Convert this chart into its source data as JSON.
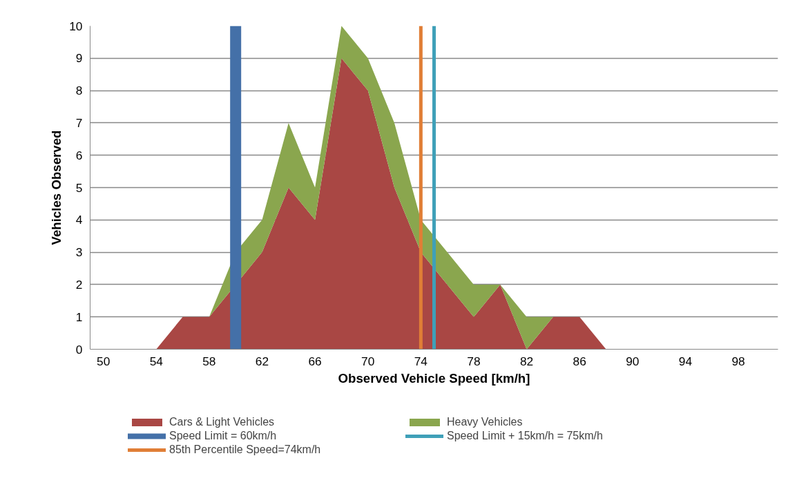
{
  "chart_data": {
    "type": "area",
    "stacked": true,
    "xlabel": "Observed Vehicle Speed [km/h]",
    "ylabel": "Vehicles Observed",
    "x": [
      50,
      52,
      54,
      56,
      58,
      60,
      62,
      64,
      66,
      68,
      70,
      72,
      74,
      76,
      78,
      80,
      82,
      84,
      86,
      88,
      90,
      92,
      94,
      96,
      98,
      100
    ],
    "series": [
      {
        "name": "Cars & Light Vehicles",
        "color": "#a94744",
        "values": [
          0,
          0,
          0,
          1,
          1,
          2,
          3,
          5,
          4,
          9,
          8,
          5,
          3,
          2,
          1,
          2,
          0,
          1,
          1,
          0,
          0,
          0,
          0,
          0,
          0,
          0
        ]
      },
      {
        "name": "Heavy Vehicles",
        "color": "#8aa64e",
        "values": [
          0,
          0,
          0,
          0,
          0,
          1,
          1,
          2,
          1,
          1,
          1,
          2,
          1,
          1,
          1,
          0,
          1,
          0,
          0,
          0,
          0,
          0,
          0,
          0,
          0,
          0
        ]
      }
    ],
    "ref_lines": [
      {
        "axis": "x",
        "value": 60,
        "label": "Speed Limit = 60km/h",
        "color": "#4470a8"
      },
      {
        "axis": "x",
        "value": 75,
        "label": "Speed Limit + 15km/h = 75km/h",
        "color": "#3fa0b8"
      },
      {
        "axis": "x",
        "value": 74,
        "label": "85th Percentile Speed=74km/h",
        "color": "#e07e36"
      }
    ],
    "xlim": [
      49,
      101
    ],
    "xticks": [
      50,
      54,
      58,
      62,
      66,
      70,
      74,
      78,
      82,
      86,
      90,
      94,
      98
    ],
    "ylim": [
      0,
      10
    ],
    "yticks": [
      0,
      1,
      2,
      3,
      4,
      5,
      6,
      7,
      8,
      9,
      10
    ],
    "grid": "y",
    "legend": "bottom"
  }
}
